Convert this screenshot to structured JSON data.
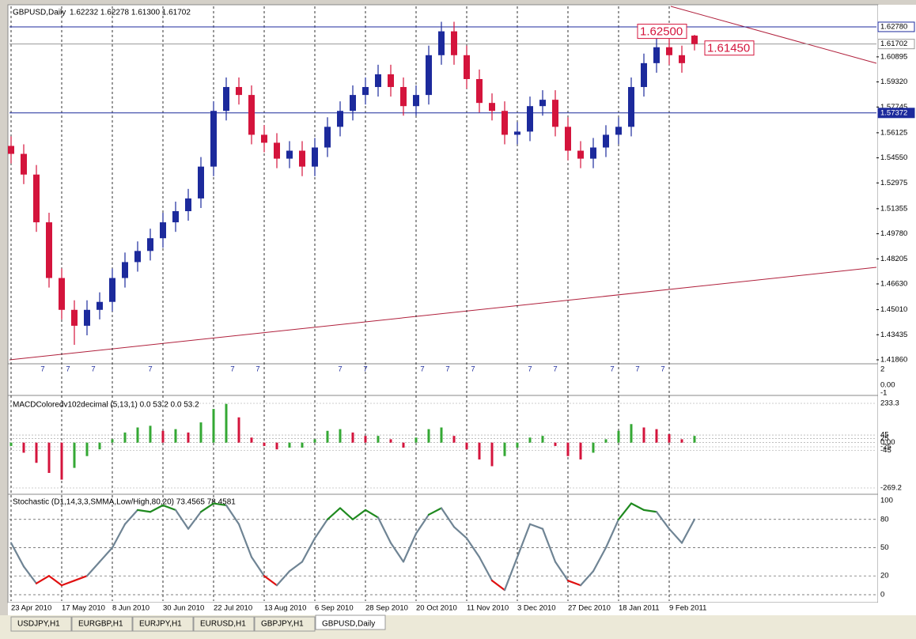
{
  "header": {
    "symbol": "GBPUSD,Daily",
    "ohlc": "1.62232 1.62278 1.61300 1.61702"
  },
  "chart_data": [
    {
      "type": "candlestick",
      "x": [
        0,
        4,
        8,
        12,
        16,
        20,
        24,
        28,
        32,
        36,
        40,
        44,
        48,
        52,
        56,
        60,
        64,
        68,
        72,
        76,
        80,
        84,
        88,
        92,
        96,
        100,
        104,
        108,
        112,
        116,
        120,
        124,
        128,
        132,
        136,
        140,
        144,
        148,
        152,
        156,
        160,
        164,
        168,
        172,
        176,
        180,
        184,
        188,
        192,
        196,
        200,
        204,
        208,
        212,
        216
      ],
      "open": [
        1.553,
        1.548,
        1.535,
        1.505,
        1.47,
        1.45,
        1.44,
        1.45,
        1.455,
        1.47,
        1.48,
        1.487,
        1.495,
        1.505,
        1.512,
        1.52,
        1.54,
        1.575,
        1.59,
        1.585,
        1.56,
        1.555,
        1.545,
        1.55,
        1.54,
        1.552,
        1.565,
        1.575,
        1.585,
        1.59,
        1.598,
        1.59,
        1.578,
        1.585,
        1.61,
        1.625,
        1.61,
        1.595,
        1.58,
        1.575,
        1.56,
        1.562,
        1.578,
        1.582,
        1.565,
        1.55,
        1.545,
        1.552,
        1.56,
        1.565,
        1.59,
        1.605,
        1.615,
        1.61,
        1.62232
      ],
      "high": [
        1.559,
        1.554,
        1.541,
        1.511,
        1.476,
        1.456,
        1.456,
        1.461,
        1.476,
        1.486,
        1.493,
        1.501,
        1.511,
        1.518,
        1.526,
        1.546,
        1.581,
        1.596,
        1.596,
        1.591,
        1.566,
        1.561,
        1.556,
        1.556,
        1.558,
        1.571,
        1.581,
        1.591,
        1.596,
        1.604,
        1.604,
        1.596,
        1.591,
        1.616,
        1.631,
        1.631,
        1.616,
        1.601,
        1.586,
        1.581,
        1.568,
        1.584,
        1.588,
        1.588,
        1.571,
        1.556,
        1.558,
        1.566,
        1.571,
        1.596,
        1.611,
        1.621,
        1.621,
        1.616,
        1.62278
      ],
      "low": [
        1.542,
        1.529,
        1.499,
        1.464,
        1.444,
        1.428,
        1.434,
        1.444,
        1.449,
        1.464,
        1.474,
        1.481,
        1.489,
        1.499,
        1.506,
        1.514,
        1.534,
        1.569,
        1.579,
        1.554,
        1.549,
        1.539,
        1.539,
        1.534,
        1.534,
        1.546,
        1.559,
        1.569,
        1.579,
        1.584,
        1.584,
        1.572,
        1.572,
        1.579,
        1.604,
        1.604,
        1.589,
        1.574,
        1.569,
        1.554,
        1.554,
        1.556,
        1.572,
        1.559,
        1.544,
        1.539,
        1.539,
        1.546,
        1.554,
        1.559,
        1.584,
        1.599,
        1.604,
        1.599,
        1.613
      ],
      "close": [
        1.548,
        1.535,
        1.505,
        1.47,
        1.45,
        1.44,
        1.45,
        1.455,
        1.47,
        1.48,
        1.487,
        1.495,
        1.505,
        1.512,
        1.52,
        1.54,
        1.575,
        1.59,
        1.585,
        1.56,
        1.555,
        1.545,
        1.55,
        1.54,
        1.552,
        1.565,
        1.575,
        1.585,
        1.59,
        1.598,
        1.59,
        1.578,
        1.585,
        1.61,
        1.625,
        1.61,
        1.595,
        1.58,
        1.575,
        1.56,
        1.562,
        1.578,
        1.582,
        1.565,
        1.55,
        1.545,
        1.552,
        1.56,
        1.565,
        1.59,
        1.605,
        1.615,
        1.61,
        1.605,
        1.61702
      ],
      "up_color": "#1c2a9c",
      "down_color": "#d4143c",
      "xlim": [
        -0.5,
        273.5
      ],
      "xticks": [
        {
          "value": 0,
          "label": "23 Apr 2010"
        },
        {
          "value": 16,
          "label": "17 May 2010"
        },
        {
          "value": 32,
          "label": "8 Jun 2010"
        },
        {
          "value": 48,
          "label": "30 Jun 2010"
        },
        {
          "value": 64,
          "label": "22 Jul 2010"
        },
        {
          "value": 80,
          "label": "13 Aug 2010"
        },
        {
          "value": 96,
          "label": "6 Sep 2010"
        },
        {
          "value": 112,
          "label": "28 Sep 2010"
        },
        {
          "value": 128,
          "label": "20 Oct 2010"
        },
        {
          "value": 144,
          "label": "11 Nov 2010"
        },
        {
          "value": 160,
          "label": "3 Dec 2010"
        },
        {
          "value": 176,
          "label": "27 Dec 2010"
        },
        {
          "value": 192,
          "label": "18 Jan 2011"
        },
        {
          "value": 208,
          "label": "9 Feb 2011"
        }
      ],
      "ylim": [
        1.4171,
        1.6407
      ],
      "yticks": [
        {
          "value": 1.4186,
          "label": "1.41860"
        },
        {
          "value": 1.43435,
          "label": "1.43435"
        },
        {
          "value": 1.4501,
          "label": "1.45010"
        },
        {
          "value": 1.4663,
          "label": "1.46630"
        },
        {
          "value": 1.48205,
          "label": "1.48205"
        },
        {
          "value": 1.4978,
          "label": "1.49780"
        },
        {
          "value": 1.51355,
          "label": "1.51355"
        },
        {
          "value": 1.52975,
          "label": "1.52975"
        },
        {
          "value": 1.5455,
          "label": "1.54550"
        },
        {
          "value": 1.56125,
          "label": "1.56125"
        },
        {
          "value": 1.57745,
          "label": "1.57745"
        },
        {
          "value": 1.5932,
          "label": "1.59320"
        },
        {
          "value": 1.60895,
          "label": "1.60895"
        }
      ],
      "levels": [
        {
          "value": 1.6278,
          "label": "1.62780",
          "color": "#1c2a9c"
        },
        {
          "value": 1.61702,
          "label": "1.61702",
          "color": "#9a9a9a"
        },
        {
          "value": 1.57372,
          "label": "1.57372",
          "color": "#1c2a9c"
        }
      ],
      "annotations": [
        {
          "value": 1.625,
          "label": "1.62500"
        },
        {
          "value": 1.6145,
          "label": "1.61450"
        }
      ],
      "annotation_color": "#d4143c"
    },
    {
      "type": "marker",
      "label": "7",
      "x": [
        10,
        18,
        26,
        44,
        70,
        78,
        104,
        112,
        130,
        138,
        146,
        164,
        172,
        190,
        198,
        206
      ],
      "ylim": [
        -1.1,
        2.7
      ],
      "yticks": [
        2,
        {
          "value": 0,
          "label": "0.00"
        },
        -1
      ],
      "color": "#1c2a9c"
    },
    {
      "type": "bar",
      "title": "MACDColoredv102decimal (5,13,1) 0.0 53.2 0.0 53.2",
      "x": [
        0,
        4,
        8,
        12,
        16,
        20,
        24,
        28,
        32,
        36,
        40,
        44,
        48,
        52,
        56,
        60,
        64,
        68,
        72,
        76,
        80,
        84,
        88,
        92,
        96,
        100,
        104,
        108,
        112,
        116,
        120,
        124,
        128,
        132,
        136,
        140,
        144,
        148,
        152,
        156,
        160,
        164,
        168,
        172,
        176,
        180,
        184,
        188,
        192,
        196,
        200,
        204,
        208,
        212,
        216
      ],
      "values": [
        -20,
        -60,
        -120,
        -180,
        -220,
        -150,
        -80,
        -40,
        20,
        60,
        90,
        100,
        70,
        80,
        60,
        120,
        200,
        230,
        150,
        30,
        -20,
        -40,
        -30,
        -30,
        20,
        70,
        80,
        60,
        40,
        40,
        20,
        -30,
        30,
        80,
        90,
        40,
        -40,
        -100,
        -140,
        -80,
        -30,
        30,
        40,
        -20,
        -80,
        -100,
        -60,
        20,
        70,
        110,
        90,
        80,
        50,
        20,
        40
      ],
      "up_color": "#34a834",
      "down_color": "#d4143c",
      "ylim": [
        -306.8,
        270.9
      ],
      "yticks": [
        233.3,
        45,
        25,
        {
          "value": 0,
          "label": "0.00"
        },
        -25,
        -45,
        -269.2
      ]
    },
    {
      "type": "line",
      "title": "Stochastic (D1,14,3,3,SMMA,Low/High,80,20) 73.4565 78.4581",
      "x": [
        0,
        4,
        8,
        12,
        16,
        20,
        24,
        28,
        32,
        36,
        40,
        44,
        48,
        52,
        56,
        60,
        64,
        68,
        72,
        76,
        80,
        84,
        88,
        92,
        96,
        100,
        104,
        108,
        112,
        116,
        120,
        124,
        128,
        132,
        136,
        140,
        144,
        148,
        152,
        156,
        160,
        164,
        168,
        172,
        176,
        180,
        184,
        188,
        192,
        196,
        200,
        204,
        208,
        212,
        216
      ],
      "values": [
        55,
        30,
        12,
        20,
        10,
        15,
        20,
        35,
        50,
        75,
        90,
        88,
        95,
        90,
        70,
        88,
        97,
        95,
        75,
        40,
        20,
        10,
        25,
        35,
        60,
        80,
        92,
        80,
        90,
        82,
        55,
        35,
        65,
        85,
        92,
        72,
        60,
        40,
        15,
        5,
        40,
        75,
        70,
        35,
        15,
        10,
        25,
        50,
        80,
        97,
        90,
        88,
        70,
        55,
        80
      ],
      "color": "#6f8494",
      "high_color": "#1f8a1f",
      "low_color": "#e01010",
      "overbought": 80,
      "oversold": 20,
      "ylim": [
        -6.7,
        105
      ],
      "yticks": [
        100,
        80,
        50,
        20,
        0
      ],
      "grid": true
    }
  ],
  "tabs": [
    "USDJPY,H1",
    "EURGBP,H1",
    "EURJPY,H1",
    "EURUSD,H1",
    "GBPJPY,H1",
    "GBPUSD,Daily"
  ],
  "active_tab": 5
}
